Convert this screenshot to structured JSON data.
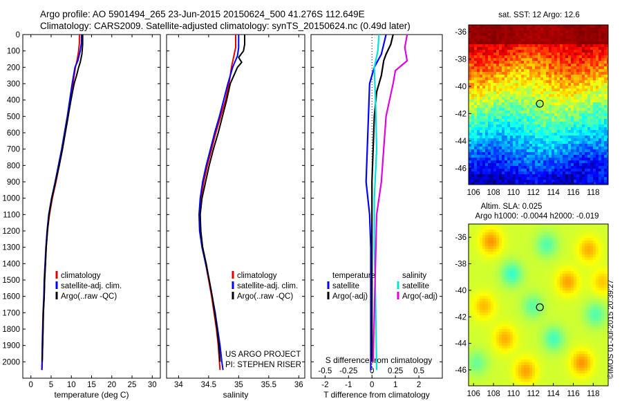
{
  "header": {
    "title_line1": "Argo profile: AO 5901494_265 23-Jun-2015 20150624_500 41.276S 112.649E",
    "title_line2": "Climatology: CARS2009. Satellite-adjusted climatology: synTS_20150624.nc (0.49d later)"
  },
  "credit": "©IMOS 01-Jul-2015 20:39:27",
  "colors": {
    "climatology": "#e00000",
    "satellite": "#0000ff",
    "argo": "#000000",
    "sat_salinity": "#00e0e0",
    "argo_salinity": "#e000e0"
  },
  "chart_data": [
    {
      "id": "temperature",
      "type": "line",
      "xlabel": "temperature (deg C)",
      "ylabel": "",
      "xlim": [
        -2,
        32
      ],
      "ylim": [
        2100,
        0
      ],
      "xticks": [
        0,
        5,
        10,
        15,
        20,
        25,
        30
      ],
      "yticks": [
        0,
        100,
        200,
        300,
        400,
        500,
        600,
        700,
        800,
        900,
        1000,
        1100,
        1200,
        1300,
        1400,
        1500,
        1600,
        1700,
        1800,
        1900,
        2000
      ],
      "legend": [
        "climatology",
        "satellite-adj. clim.",
        "Argo(..raw -QC)"
      ],
      "annotation": [],
      "series": [
        {
          "name": "climatology",
          "color": "#e00000",
          "points": [
            [
              12.0,
              0
            ],
            [
              12.0,
              50
            ],
            [
              11.8,
              100
            ],
            [
              11.4,
              160
            ],
            [
              11.0,
              200
            ],
            [
              10.4,
              300
            ],
            [
              9.8,
              400
            ],
            [
              9.2,
              500
            ],
            [
              8.5,
              600
            ],
            [
              7.8,
              700
            ],
            [
              7.0,
              800
            ],
            [
              6.2,
              900
            ],
            [
              5.3,
              1000
            ],
            [
              4.6,
              1100
            ],
            [
              4.1,
              1200
            ],
            [
              3.8,
              1300
            ],
            [
              3.6,
              1400
            ],
            [
              3.4,
              1500
            ],
            [
              3.3,
              1600
            ],
            [
              3.1,
              1700
            ],
            [
              3.0,
              1800
            ],
            [
              2.9,
              1900
            ],
            [
              2.8,
              2000
            ],
            [
              2.75,
              2050
            ]
          ]
        },
        {
          "name": "satellite-adj. clim.",
          "color": "#0000ff",
          "points": [
            [
              12.5,
              0
            ],
            [
              12.5,
              50
            ],
            [
              12.2,
              100
            ],
            [
              11.6,
              160
            ],
            [
              10.9,
              200
            ],
            [
              10.2,
              300
            ],
            [
              9.6,
              400
            ],
            [
              9.0,
              500
            ],
            [
              8.3,
              600
            ],
            [
              7.6,
              700
            ],
            [
              6.8,
              800
            ],
            [
              6.0,
              900
            ],
            [
              5.1,
              1000
            ],
            [
              4.4,
              1100
            ],
            [
              4.0,
              1200
            ],
            [
              3.7,
              1300
            ],
            [
              3.5,
              1400
            ],
            [
              3.3,
              1500
            ],
            [
              3.2,
              1600
            ],
            [
              3.0,
              1700
            ],
            [
              2.9,
              1800
            ],
            [
              2.8,
              1900
            ],
            [
              2.75,
              2000
            ],
            [
              2.7,
              2050
            ]
          ]
        },
        {
          "name": "Argo(..raw -QC)",
          "color": "#000000",
          "points": [
            [
              12.8,
              0
            ],
            [
              12.8,
              60
            ],
            [
              12.6,
              120
            ],
            [
              12.2,
              170
            ],
            [
              11.8,
              200
            ],
            [
              11.3,
              250
            ],
            [
              10.7,
              300
            ],
            [
              9.9,
              400
            ],
            [
              9.2,
              500
            ],
            [
              8.5,
              600
            ],
            [
              7.8,
              700
            ],
            [
              7.0,
              800
            ],
            [
              6.1,
              900
            ],
            [
              5.2,
              1000
            ],
            [
              4.5,
              1100
            ],
            [
              4.1,
              1200
            ],
            [
              3.8,
              1300
            ],
            [
              3.6,
              1400
            ],
            [
              3.4,
              1500
            ],
            [
              3.3,
              1600
            ],
            [
              3.1,
              1700
            ],
            [
              3.0,
              1800
            ],
            [
              2.9,
              1900
            ],
            [
              2.8,
              2000
            ]
          ]
        }
      ]
    },
    {
      "id": "salinity",
      "type": "line",
      "xlabel": "salinity",
      "ylabel": "",
      "xlim": [
        33.8,
        36.1
      ],
      "ylim": [
        2100,
        0
      ],
      "xticks": [
        34,
        34.5,
        35,
        35.5,
        36
      ],
      "yticks": [],
      "legend": [
        "climatology",
        "satellite-adj. clim.",
        "Argo(..raw -QC)"
      ],
      "annotation": [
        "US ARGO PROJECT",
        "PI: STEPHEN RISER"
      ],
      "series": [
        {
          "name": "climatology",
          "color": "#e00000",
          "points": [
            [
              34.95,
              0
            ],
            [
              34.95,
              80
            ],
            [
              34.92,
              130
            ],
            [
              34.88,
              200
            ],
            [
              34.84,
              300
            ],
            [
              34.78,
              400
            ],
            [
              34.7,
              500
            ],
            [
              34.62,
              600
            ],
            [
              34.55,
              700
            ],
            [
              34.48,
              800
            ],
            [
              34.42,
              900
            ],
            [
              34.37,
              1000
            ],
            [
              34.35,
              1100
            ],
            [
              34.36,
              1200
            ],
            [
              34.4,
              1300
            ],
            [
              34.45,
              1400
            ],
            [
              34.5,
              1500
            ],
            [
              34.55,
              1600
            ],
            [
              34.59,
              1700
            ],
            [
              34.63,
              1800
            ],
            [
              34.66,
              1900
            ],
            [
              34.68,
              2000
            ],
            [
              34.69,
              2050
            ]
          ]
        },
        {
          "name": "satellite-adj. clim.",
          "color": "#0000ff",
          "points": [
            [
              35.0,
              0
            ],
            [
              35.0,
              80
            ],
            [
              34.98,
              130
            ],
            [
              34.9,
              200
            ],
            [
              34.82,
              300
            ],
            [
              34.75,
              400
            ],
            [
              34.68,
              500
            ],
            [
              34.6,
              600
            ],
            [
              34.53,
              700
            ],
            [
              34.46,
              800
            ],
            [
              34.4,
              900
            ],
            [
              34.36,
              1000
            ],
            [
              34.34,
              1100
            ],
            [
              34.35,
              1200
            ],
            [
              34.39,
              1300
            ],
            [
              34.45,
              1400
            ],
            [
              34.51,
              1500
            ],
            [
              34.56,
              1600
            ],
            [
              34.61,
              1700
            ],
            [
              34.65,
              1800
            ],
            [
              34.69,
              1900
            ],
            [
              34.72,
              2000
            ],
            [
              34.74,
              2050
            ]
          ]
        },
        {
          "name": "Argo(..raw -QC)",
          "color": "#000000",
          "points": [
            [
              35.1,
              0
            ],
            [
              35.1,
              60
            ],
            [
              35.08,
              100
            ],
            [
              35.0,
              140
            ],
            [
              35.05,
              170
            ],
            [
              34.98,
              200
            ],
            [
              34.92,
              250
            ],
            [
              34.86,
              300
            ],
            [
              34.8,
              400
            ],
            [
              34.73,
              500
            ],
            [
              34.66,
              600
            ],
            [
              34.58,
              700
            ],
            [
              34.51,
              800
            ],
            [
              34.45,
              900
            ],
            [
              34.39,
              1000
            ],
            [
              34.36,
              1100
            ],
            [
              34.37,
              1200
            ],
            [
              34.4,
              1300
            ],
            [
              34.46,
              1400
            ],
            [
              34.51,
              1500
            ],
            [
              34.56,
              1600
            ],
            [
              34.6,
              1700
            ],
            [
              34.64,
              1800
            ],
            [
              34.67,
              1900
            ],
            [
              34.69,
              2000
            ]
          ]
        }
      ]
    },
    {
      "id": "difference",
      "type": "line",
      "xlabel": "T difference from climatology",
      "xlabel_top": "S difference from climatology",
      "ylabel": "",
      "xlim": [
        -2.6,
        3.0
      ],
      "ylim": [
        2100,
        0
      ],
      "xticks": [
        -2,
        -1,
        0,
        1,
        2
      ],
      "xticklabels_top": [
        "-0.5",
        "-0.25",
        "0",
        "0.25",
        "0.5"
      ],
      "xticks_top": [
        -2,
        -1,
        0,
        1,
        2
      ],
      "yticks": [],
      "legend_temperature": [
        "temperature",
        "satellite",
        "Argo(-adj)"
      ],
      "legend_salinity": [
        "salinity",
        "satellite",
        "Argo(-adj)"
      ],
      "series": [
        {
          "name": "satellite",
          "color": "#0000ff",
          "points": [
            [
              0.6,
              0
            ],
            [
              0.5,
              60
            ],
            [
              0.4,
              120
            ],
            [
              0.1,
              200
            ],
            [
              -0.1,
              300
            ],
            [
              -0.15,
              500
            ],
            [
              -0.2,
              700
            ],
            [
              -0.25,
              900
            ],
            [
              -0.1,
              1100
            ],
            [
              -0.05,
              1300
            ],
            [
              -0.05,
              1500
            ],
            [
              -0.05,
              1700
            ],
            [
              -0.05,
              2050
            ]
          ]
        },
        {
          "name": "Argo(-adj)",
          "color": "#000000",
          "points": [
            [
              0.9,
              0
            ],
            [
              0.8,
              60
            ],
            [
              0.6,
              120
            ],
            [
              0.5,
              160
            ],
            [
              0.4,
              250
            ],
            [
              0.2,
              350
            ],
            [
              0.1,
              500
            ],
            [
              0.05,
              700
            ],
            [
              0.0,
              900
            ],
            [
              0.0,
              1100
            ],
            [
              0.0,
              1400
            ],
            [
              0.0,
              1700
            ],
            [
              0.0,
              2000
            ]
          ]
        },
        {
          "name": "satellite",
          "color": "#00e0e0",
          "points": [
            [
              0.3,
              0
            ],
            [
              0.25,
              100
            ],
            [
              0.1,
              200
            ],
            [
              0.15,
              400
            ],
            [
              0.2,
              700
            ],
            [
              0.1,
              1000
            ],
            [
              0.1,
              1300
            ],
            [
              0.15,
              1600
            ],
            [
              0.2,
              2050
            ]
          ]
        },
        {
          "name": "Argo(-adj)",
          "color": "#e000e0",
          "points": [
            [
              1.5,
              0
            ],
            [
              1.4,
              80
            ],
            [
              1.5,
              160
            ],
            [
              1.0,
              220
            ],
            [
              0.9,
              300
            ],
            [
              0.6,
              500
            ],
            [
              0.5,
              700
            ],
            [
              0.4,
              900
            ],
            [
              0.2,
              1100
            ],
            [
              0.15,
              1400
            ],
            [
              0.1,
              1700
            ],
            [
              0.05,
              2000
            ]
          ]
        }
      ]
    },
    {
      "id": "sst-map",
      "type": "heatmap",
      "title": "sat. SST: 12  Argo: 12.6",
      "xlim": [
        105.5,
        119.5
      ],
      "ylim": [
        -47.2,
        -35.5
      ],
      "xticks": [
        106,
        108,
        110,
        112,
        114,
        116,
        118
      ],
      "yticks": [
        -36,
        -38,
        -40,
        -42,
        -44,
        -46
      ],
      "marker": {
        "lon": 112.649,
        "lat": -41.276
      }
    },
    {
      "id": "sla-map",
      "type": "heatmap",
      "title": "Altim. SLA: 0.025",
      "subtitle": "Argo h1000: -0.0044 h2000: -0.019",
      "xlim": [
        105.5,
        119.5
      ],
      "ylim": [
        -47.2,
        -35.0
      ],
      "xticks": [
        106,
        108,
        110,
        112,
        114,
        116,
        118
      ],
      "yticks": [
        -36,
        -38,
        -40,
        -42,
        -44,
        -46
      ],
      "marker": {
        "lon": 112.649,
        "lat": -41.276
      }
    }
  ]
}
